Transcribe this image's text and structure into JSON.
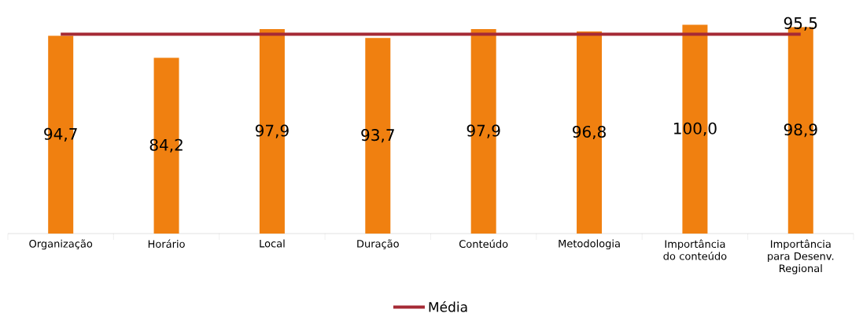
{
  "chart_data": {
    "type": "bar",
    "categories": [
      "Organização",
      "Horário",
      "Local",
      "Duração",
      "Conteúdo",
      "Metodologia",
      "Importância do conteúdo",
      "Importância para Desenv. Regional"
    ],
    "series": [
      {
        "color": "#f08010",
        "values": [
          94.7,
          84.2,
          97.9,
          93.7,
          97.9,
          96.8,
          100.0,
          98.9
        ],
        "value_labels": [
          "94,7",
          "84,2",
          "97,9",
          "93,7",
          "97,9",
          "96,8",
          "100,0",
          "98,9"
        ]
      },
      {
        "type": "line",
        "name": "Média",
        "color": "#a52a35",
        "values": [
          95.5,
          95.5,
          95.5,
          95.5,
          95.5,
          95.5,
          95.5,
          95.5
        ],
        "value_labels": [
          null,
          null,
          null,
          null,
          null,
          null,
          null,
          "95,5"
        ]
      }
    ],
    "legend": "bottom"
  }
}
